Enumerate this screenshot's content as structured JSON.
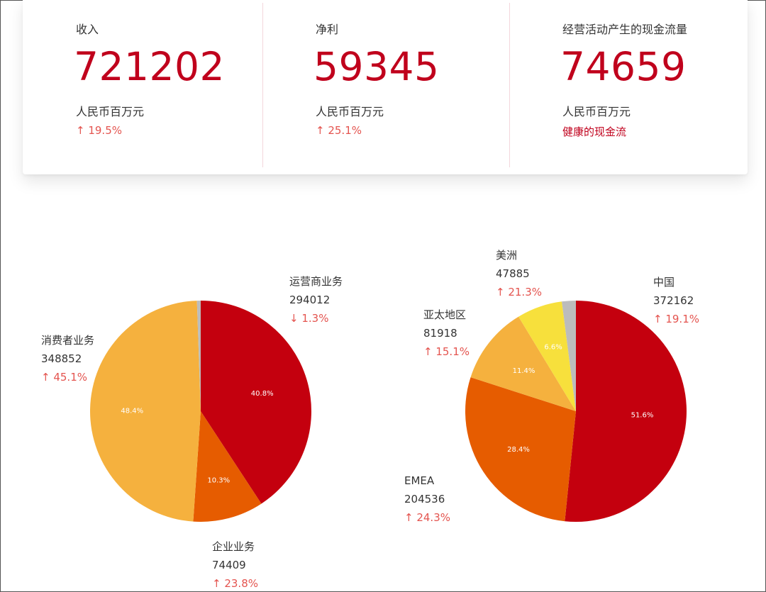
{
  "metrics": [
    {
      "label": "收入",
      "value": "721202",
      "unit": "人民币百万元",
      "change": "↑ 19.5%"
    },
    {
      "label": "净利",
      "value": "59345",
      "unit": "人民币百万元",
      "change": "↑ 25.1%"
    },
    {
      "label": "经营活动产生的现金流量",
      "value": "74659",
      "unit": "人民币百万元",
      "change": "健康的现金流"
    }
  ],
  "chart_data": [
    {
      "type": "pie",
      "slices": [
        {
          "name": "运营商业务",
          "value": 294012,
          "percent_label": "40.8%",
          "change": "↓ 1.3%",
          "color": "#c4000e"
        },
        {
          "name": "企业业务",
          "value": 74409,
          "percent_label": "10.3%",
          "change": "↑ 23.8%",
          "color": "#e65c00"
        },
        {
          "name": "消费者业务",
          "value": 348852,
          "percent_label": "48.4%",
          "change": "↑ 45.1%",
          "color": "#f5b13e"
        },
        {
          "name": "",
          "value": 3929,
          "percent_label": "",
          "change": "",
          "color": "#bcbcbc"
        }
      ]
    },
    {
      "type": "pie",
      "slices": [
        {
          "name": "中国",
          "value": 372162,
          "percent_label": "51.6%",
          "change": "↑ 19.1%",
          "color": "#c4000e"
        },
        {
          "name": "EMEA",
          "value": 204536,
          "percent_label": "28.4%",
          "change": "↑ 24.3%",
          "color": "#e65c00"
        },
        {
          "name": "亚太地区",
          "value": 81918,
          "percent_label": "11.4%",
          "change": "↑ 15.1%",
          "color": "#f5b13e"
        },
        {
          "name": "美洲",
          "value": 47885,
          "percent_label": "6.6%",
          "change": "↑ 21.3%",
          "color": "#f7e03c"
        },
        {
          "name": "",
          "value": 14701,
          "percent_label": "",
          "change": "",
          "color": "#bcbcbc"
        }
      ]
    }
  ]
}
